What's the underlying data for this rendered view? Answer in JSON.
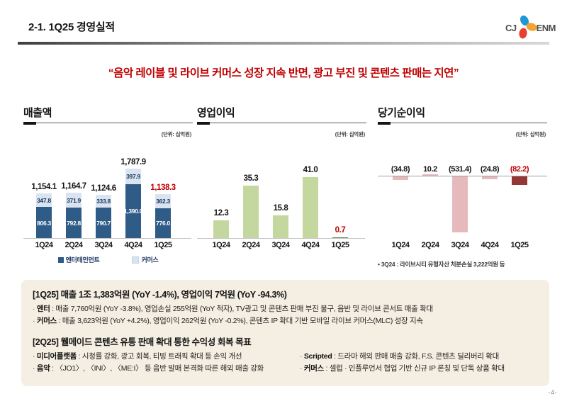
{
  "header": {
    "title": "2-1. 1Q25 경영실적",
    "logo_cj": "CJ",
    "logo_enm": "ENM",
    "page_number": "-4-"
  },
  "headline": "“음악 레이블 및 라이브 커머스 성장 지속 반면, 광고 부진 및 콘텐츠 판매는 지연”",
  "colors": {
    "accent_red": "#c00000",
    "entertainment_blue": "#2e5c87",
    "commerce_lightblue": "#dae4f0",
    "operating_green": "#c4d79e",
    "operating_green_dark": "#6e7d3f",
    "net_pink": "#e6b9bc",
    "net_darkred": "#943634",
    "label_navy": "#17365d",
    "box_beige": "#f4efe2"
  },
  "chart_data": [
    {
      "type": "bar",
      "stacked": true,
      "title": "매출액",
      "unit_label": "(단위: 십억원)",
      "categories": [
        "1Q24",
        "2Q24",
        "3Q24",
        "4Q24",
        "1Q25"
      ],
      "series": [
        {
          "name": "엔터테인먼트",
          "color": "#2e5c87",
          "values": [
            806.3,
            792.8,
            790.7,
            1390.0,
            776.0
          ],
          "labels": [
            "806.3",
            "792.8",
            "790.7",
            "1,390.0",
            "776.0"
          ]
        },
        {
          "name": "커머스",
          "color": "#dae4f0",
          "values": [
            347.8,
            371.9,
            333.8,
            397.9,
            362.3
          ],
          "labels": [
            "347.8",
            "371.9",
            "333.8",
            "397.9",
            "362.3"
          ]
        }
      ],
      "totals": [
        "1,154.1",
        "1,164.7",
        "1,124.6",
        "1,787.9",
        "1,138.3"
      ],
      "total_values": [
        1154.1,
        1164.7,
        1124.6,
        1787.9,
        1138.3
      ],
      "highlight_last": true,
      "legend": [
        "엔터테인먼트",
        "커머스"
      ],
      "legend_position": "bottom",
      "ylim": [
        0,
        1850
      ],
      "grid": false
    },
    {
      "type": "bar",
      "title": "영업이익",
      "unit_label": "(단위: 십억원)",
      "categories": [
        "1Q24",
        "2Q24",
        "3Q24",
        "4Q24",
        "1Q25"
      ],
      "values": [
        12.3,
        35.3,
        15.8,
        41.0,
        0.7
      ],
      "labels": [
        "12.3",
        "35.3",
        "15.8",
        "41.0",
        "0.7"
      ],
      "bar_color": "#c4d79e",
      "last_bar_color": "#6e7d3f",
      "highlight_last": true,
      "ylim": [
        0,
        45
      ],
      "grid": false
    },
    {
      "type": "bar",
      "title": "당기순이익",
      "unit_label": "(단위: 십억원)",
      "categories": [
        "1Q24",
        "2Q24",
        "3Q24",
        "4Q24",
        "1Q25"
      ],
      "values": [
        -34.8,
        10.2,
        -531.4,
        -24.8,
        -82.2
      ],
      "labels": [
        "(34.8)",
        "10.2",
        "(531.4)",
        "(24.8)",
        "(82.2)"
      ],
      "bar_color": "#e6b9bc",
      "last_bar_color": "#943634",
      "highlight_last": true,
      "footnote": "• 3Q24 : 라이브시티 유형자산 처분손실 3,222억원 등",
      "ylim": [
        -560,
        60
      ],
      "grid": false
    }
  ],
  "summary_box": {
    "bullet_char": "·",
    "q1": {
      "heading": "[1Q25] 매출 1조 1,383억원 (YoY -1.4%), 영업이익 7억원 (YoY -94.3%)",
      "bullets": [
        {
          "label": "엔터",
          "text": ": 매출 7,760억원 (YoY -3.8%), 영업손실 255억원 (YoY 적자), TV광고 및 콘텐츠 판매 부진 불구, 음반 및 라이브 콘서트 매출 확대"
        },
        {
          "label": "커머스",
          "text": ": 매출 3,623억원 (YoY +4.2%), 영업이익 262억원 (YoY -0.2%), 콘텐츠 IP 확대 기반 모바일 라이브 커머스(MLC) 성장 지속"
        }
      ]
    },
    "q2": {
      "heading": "[2Q25] 웰메이드 콘텐츠 유통 판매 확대 통한 수익성 회복 목표",
      "bullets": [
        {
          "label": "미디어플랫폼",
          "text": ": 시청률 강화, 광고 회복, 티빙 트래픽 확대 등 손익 개선"
        },
        {
          "label": "Scripted",
          "text": ": 드라마 해외 판매 매출 강화, F.S. 콘텐츠 딜리버리 확대"
        },
        {
          "label": "음악",
          "text": ": 〈JO1〉, 〈INI〉, 〈ME:I〉 등 음반 발매 본격화 따른 해외 매출 강화"
        },
        {
          "label": "커머스",
          "text": ": 셀럽 · 인플루언서 협업 기반 신규 IP 론칭 및 단독 상품 확대"
        }
      ]
    }
  }
}
